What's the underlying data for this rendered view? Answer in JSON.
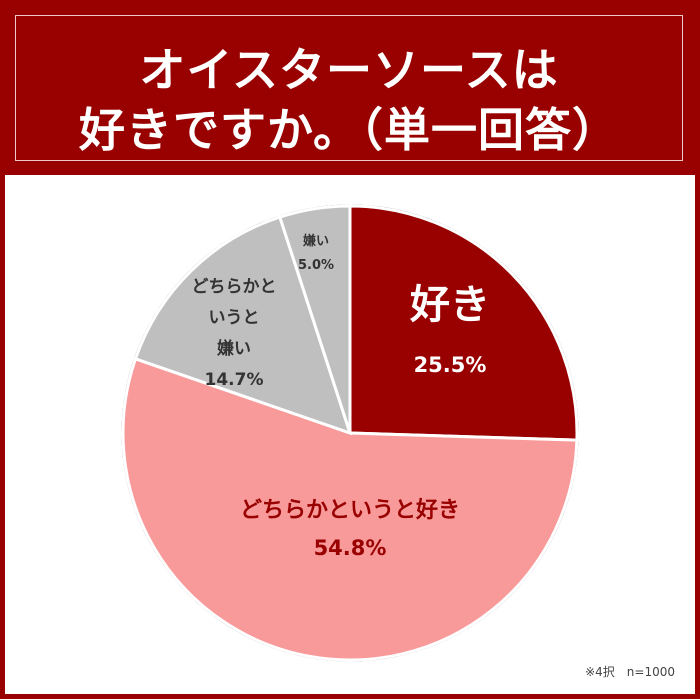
{
  "title_lines": [
    "オイスターソースは",
    "好きですか。（単一回答）"
  ],
  "note": "※4択　n=1000",
  "chart_data": {
    "type": "pie",
    "title": "オイスターソースは好きですか。（単一回答）",
    "start": "top",
    "direction": "clockwise",
    "slices": [
      {
        "label": "好き",
        "value": 25.5,
        "value_label": "25.5%",
        "color": "#990000",
        "text_color": "#ffffff"
      },
      {
        "label": "どちらかというと好き",
        "value": 54.8,
        "value_label": "54.8%",
        "color": "#f99a9a",
        "text_color": "#990000"
      },
      {
        "label": "どちらかというと嫌い",
        "value": 14.7,
        "value_label": "14.7%",
        "color": "#bfbfbf",
        "text_color": "#333333"
      },
      {
        "label": "嫌い",
        "value": 5.0,
        "value_label": "5.0%",
        "color": "#bfbfbf",
        "text_color": "#333333"
      }
    ]
  }
}
